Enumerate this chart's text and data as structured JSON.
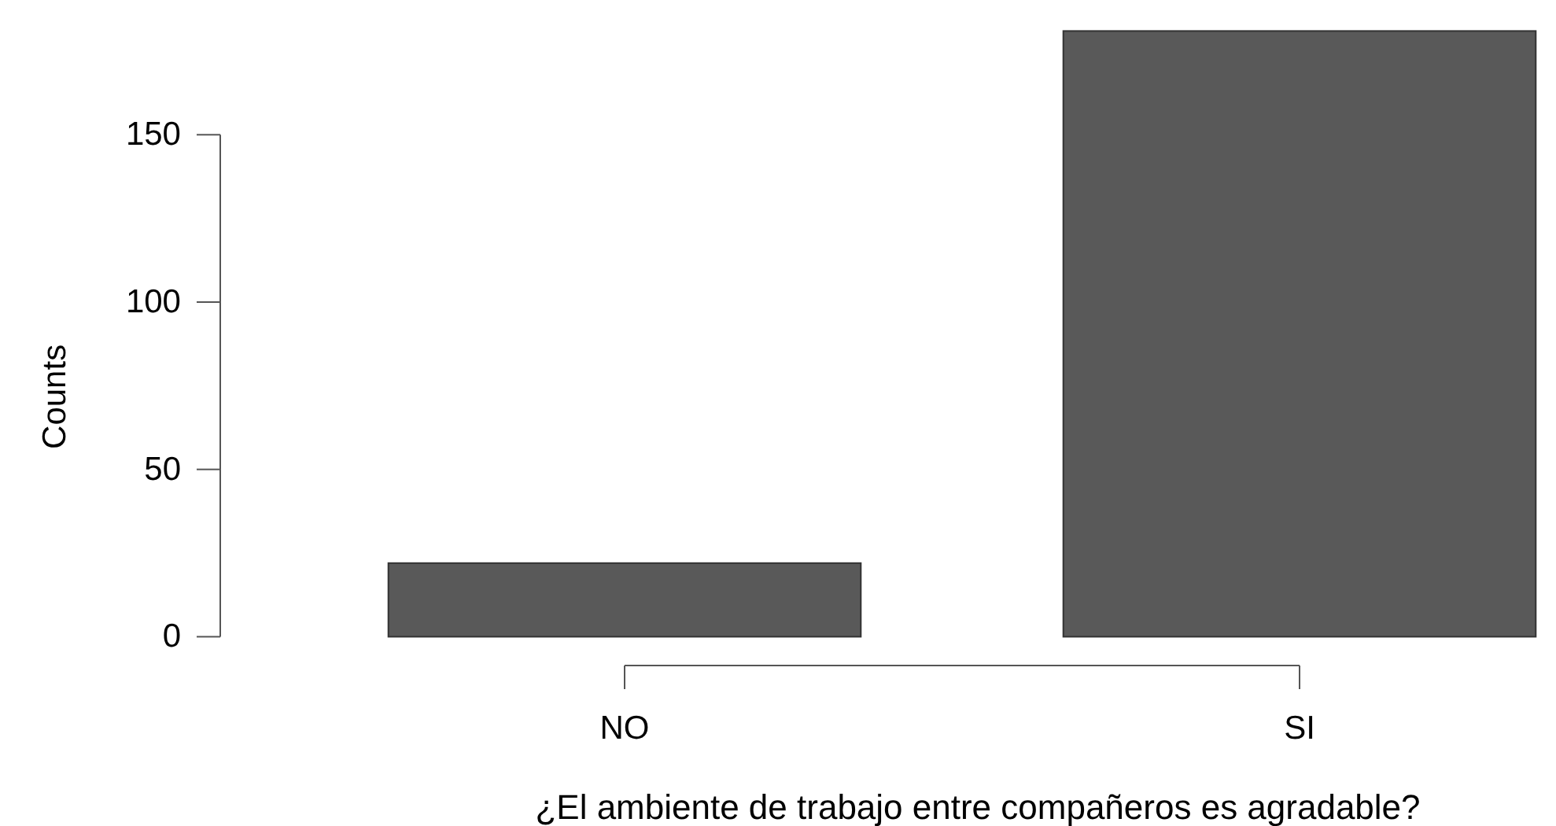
{
  "chart_data": {
    "type": "bar",
    "xlabel": "¿El ambiente de trabajo entre compañeros es agradable?",
    "ylabel": "Counts",
    "categories": [
      "NO",
      "SI"
    ],
    "values": [
      22,
      181
    ],
    "color": "#595959",
    "ylim": [
      0,
      181
    ],
    "yticks": [
      0,
      50,
      100,
      150
    ],
    "grid": false
  }
}
